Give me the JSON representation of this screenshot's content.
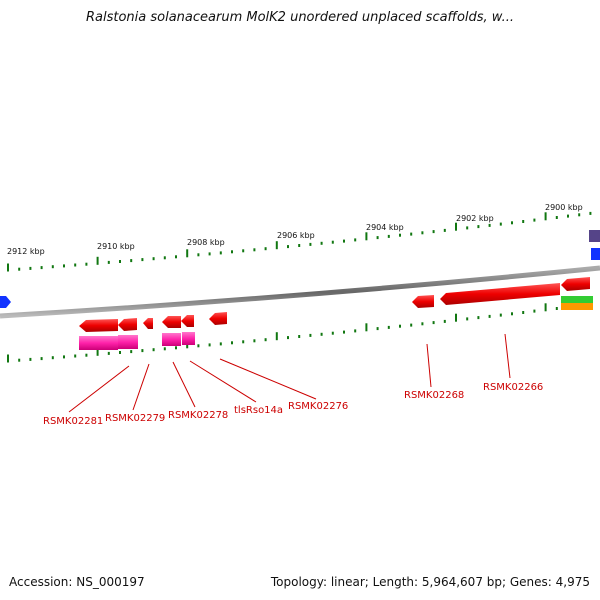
{
  "title": "Ralstonia solanacearum MolK2 unordered unplaced scaffolds, w...",
  "footer": {
    "accession": "Accession: NS_000197",
    "stats": "Topology: linear; Length: 5,964,607 bp; Genes: 4,975"
  },
  "scale": {
    "ticks": [
      "2912 kbp",
      "2910 kbp",
      "2908 kbp",
      "2906 kbp",
      "2904 kbp",
      "2902 kbp",
      "2900 kbp"
    ]
  },
  "genes": [
    {
      "label": "RSMK02281"
    },
    {
      "label": "RSMK02279"
    },
    {
      "label": "RSMK02278"
    },
    {
      "label": "tlsRso14a"
    },
    {
      "label": "RSMK02276"
    },
    {
      "label": "RSMK02268"
    },
    {
      "label": "RSMK02266"
    }
  ],
  "colors": {
    "gene": "#ee0000",
    "cds": "#ff33aa",
    "backbone": "#888888",
    "tick": "#117711",
    "label": "#cc0000",
    "edge_blue": "#1133ff",
    "edge_purple": "#554488",
    "green": "#33cc33",
    "orange": "#ff9900"
  }
}
